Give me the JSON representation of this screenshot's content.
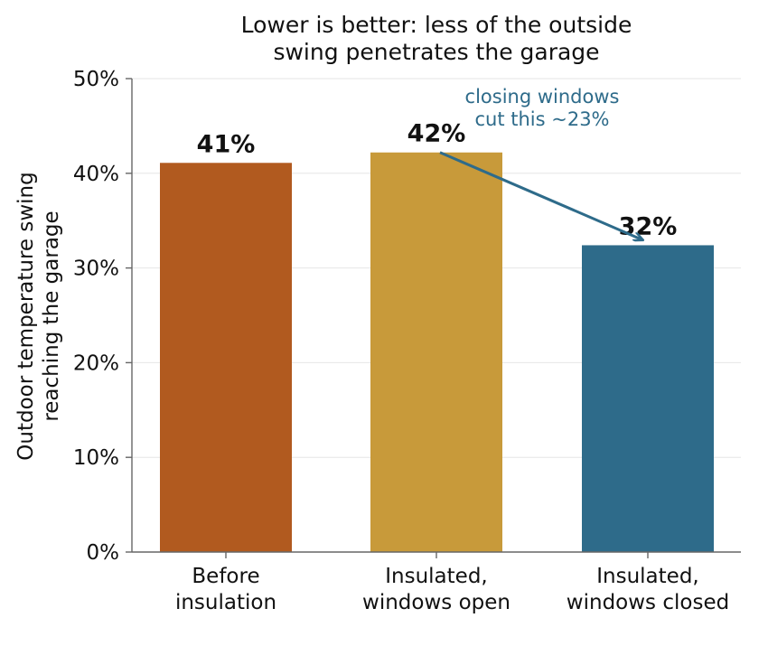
{
  "chart_data": {
    "type": "bar",
    "title_lines": [
      "Lower is better: less of the outside",
      "swing penetrates the garage"
    ],
    "ylabel_lines": [
      "Outdoor temperature swing",
      "reaching the garage"
    ],
    "xlabel": "",
    "categories": [
      [
        "Before",
        "insulation"
      ],
      [
        "Insulated,",
        "windows open"
      ],
      [
        "Insulated,",
        "windows closed"
      ]
    ],
    "values": [
      41.1,
      42.2,
      32.4
    ],
    "value_labels": [
      "41%",
      "42%",
      "32%"
    ],
    "colors": [
      "#b15a1f",
      "#c89a3a",
      "#2e6b8a"
    ],
    "ylim": [
      0,
      50
    ],
    "yticks": [
      0,
      10,
      20,
      30,
      40,
      50
    ],
    "ytick_labels": [
      "0%",
      "10%",
      "20%",
      "30%",
      "40%",
      "50%"
    ],
    "grid": true,
    "annotation": {
      "lines": [
        "closing windows",
        "cut this ~23%"
      ],
      "color": "#2e6b8a",
      "from_bar": 1,
      "to_bar": 2
    }
  }
}
